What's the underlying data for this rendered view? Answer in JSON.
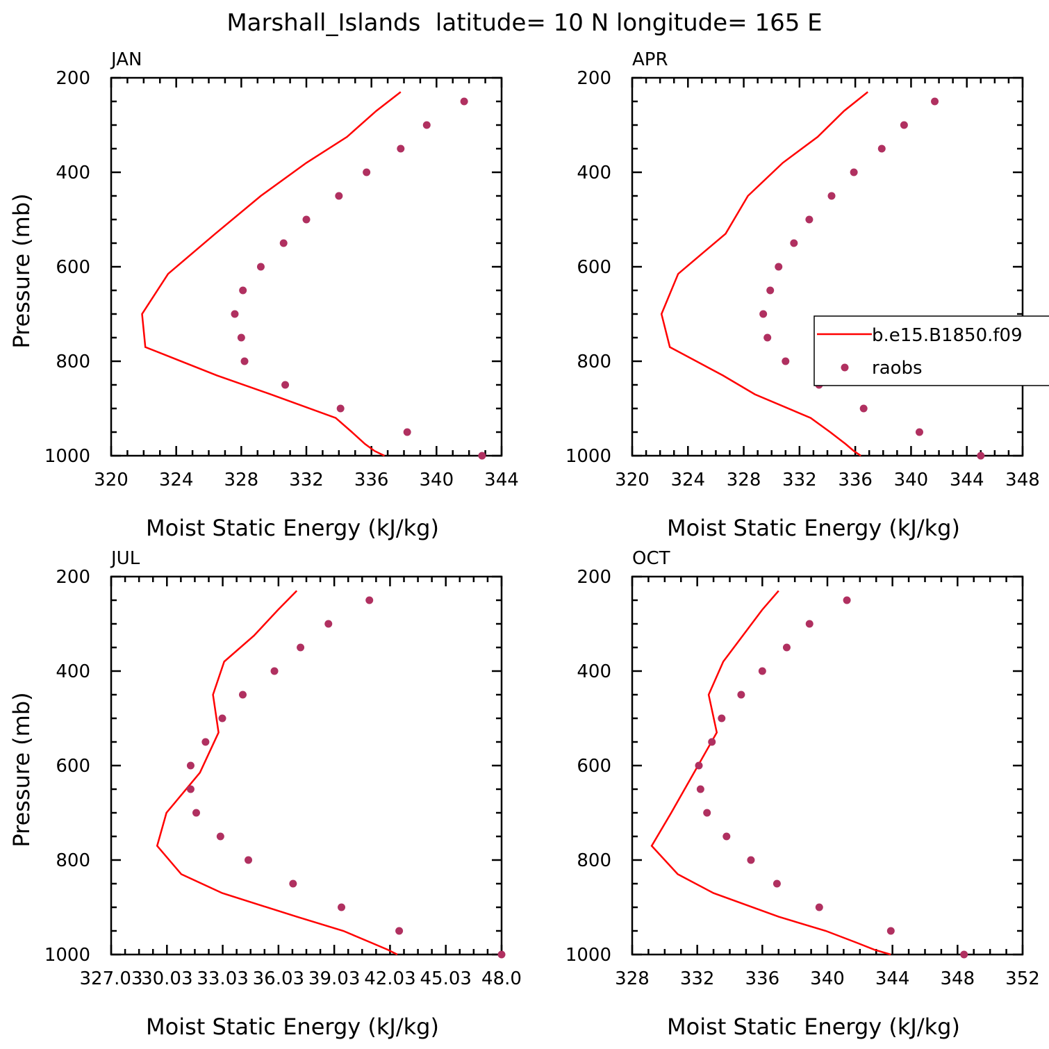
{
  "figure": {
    "title": "Marshall_Islands  latitude= 10 N longitude= 165 E"
  },
  "legend": {
    "model_label": "b.e15.B1850.f09",
    "obs_label": "raobs",
    "placement": "inside APR panel, right side",
    "model_color": "#ff0000",
    "obs_color": "#b03060"
  },
  "chart_data": [
    {
      "type": "line",
      "title": "JAN",
      "xlabel": "Moist Static Energy (kJ/kg)",
      "ylabel": "Pressure (mb)",
      "xlim": [
        320,
        344
      ],
      "ylim": [
        1000,
        200
      ],
      "x_ticks": [
        "320",
        "324",
        "328",
        "332",
        "336",
        "340",
        "344"
      ],
      "y_ticks": [
        "200",
        "400",
        "600",
        "800",
        "1000"
      ],
      "series": [
        {
          "name": "b.e15.B1850.f09",
          "style": "line",
          "pressure": [
            230,
            270,
            325,
            380,
            450,
            530,
            615,
            700,
            770,
            830,
            870,
            920,
            950,
            975,
            990,
            1000
          ],
          "values": [
            337.8,
            336.3,
            334.5,
            332.0,
            329.2,
            326.4,
            323.5,
            321.9,
            322.1,
            326.5,
            329.8,
            333.8,
            334.8,
            335.6,
            336.2,
            336.8
          ]
        },
        {
          "name": "raobs",
          "style": "dots",
          "pressure": [
            250,
            300,
            350,
            400,
            450,
            500,
            550,
            600,
            650,
            700,
            750,
            800,
            850,
            900,
            950,
            1000
          ],
          "values": [
            341.7,
            339.4,
            337.8,
            335.7,
            334.0,
            332.0,
            330.6,
            329.2,
            328.1,
            327.6,
            328.0,
            328.2,
            330.7,
            334.1,
            338.2,
            342.8
          ]
        }
      ]
    },
    {
      "type": "line",
      "title": "APR",
      "xlabel": "Moist Static Energy (kJ/kg)",
      "ylabel": "",
      "xlim": [
        320,
        348
      ],
      "ylim": [
        1000,
        200
      ],
      "x_ticks": [
        "320",
        "324",
        "328",
        "332",
        "336",
        "340",
        "344",
        "348"
      ],
      "y_ticks": [
        "200",
        "400",
        "600",
        "800",
        "1000"
      ],
      "series": [
        {
          "name": "b.e15.B1850.f09",
          "style": "line",
          "pressure": [
            230,
            270,
            325,
            380,
            450,
            530,
            615,
            700,
            770,
            830,
            870,
            920,
            950,
            975,
            990,
            1000
          ],
          "values": [
            336.9,
            335.2,
            333.3,
            330.8,
            328.3,
            326.7,
            323.3,
            322.1,
            322.7,
            326.5,
            328.8,
            332.8,
            334.2,
            335.3,
            335.9,
            336.4
          ]
        },
        {
          "name": "raobs",
          "style": "dots",
          "pressure": [
            250,
            300,
            350,
            400,
            450,
            500,
            550,
            600,
            650,
            700,
            750,
            800,
            850,
            900,
            950,
            1000
          ],
          "values": [
            341.7,
            339.5,
            337.9,
            335.9,
            334.3,
            332.7,
            331.6,
            330.5,
            329.9,
            329.4,
            329.7,
            331.0,
            333.4,
            336.6,
            340.6,
            345.0
          ]
        }
      ]
    },
    {
      "type": "line",
      "title": "JUL",
      "xlabel": "Moist Static Energy (kJ/kg)",
      "ylabel": "Pressure (mb)",
      "xlim": [
        327.03,
        348.0
      ],
      "ylim": [
        1000,
        200
      ],
      "x_ticks": [
        "327.03",
        "30.03",
        "33.03",
        "36.03",
        "39.03",
        "42.03",
        "45.03",
        "48.0"
      ],
      "y_ticks": [
        "200",
        "400",
        "600",
        "800",
        "1000"
      ],
      "series": [
        {
          "name": "b.e15.B1850.f09",
          "style": "line",
          "pressure": [
            230,
            270,
            325,
            380,
            450,
            530,
            615,
            700,
            770,
            830,
            870,
            920,
            950,
            975,
            990,
            1000
          ],
          "values": [
            337.0,
            336.0,
            334.7,
            333.1,
            332.5,
            332.8,
            331.8,
            330.0,
            329.5,
            330.8,
            333.0,
            337.0,
            339.5,
            341.0,
            341.9,
            342.4
          ]
        },
        {
          "name": "raobs",
          "style": "dots",
          "pressure": [
            250,
            300,
            350,
            400,
            450,
            500,
            550,
            600,
            650,
            700,
            750,
            800,
            850,
            900,
            950,
            1000
          ],
          "values": [
            340.9,
            338.7,
            337.2,
            335.8,
            334.1,
            333.0,
            332.1,
            331.3,
            331.3,
            331.6,
            332.9,
            334.4,
            336.8,
            339.4,
            342.5,
            348.0
          ]
        }
      ]
    },
    {
      "type": "line",
      "title": "OCT",
      "xlabel": "Moist Static Energy (kJ/kg)",
      "ylabel": "",
      "xlim": [
        328,
        352
      ],
      "ylim": [
        1000,
        200
      ],
      "x_ticks": [
        "328",
        "332",
        "336",
        "340",
        "344",
        "348",
        "352"
      ],
      "y_ticks": [
        "200",
        "400",
        "600",
        "800",
        "1000"
      ],
      "series": [
        {
          "name": "b.e15.B1850.f09",
          "style": "line",
          "pressure": [
            230,
            270,
            325,
            380,
            450,
            530,
            615,
            700,
            770,
            830,
            870,
            920,
            950,
            975,
            990,
            1000
          ],
          "values": [
            337.0,
            336.0,
            334.8,
            333.6,
            332.7,
            333.2,
            331.8,
            330.4,
            329.2,
            330.8,
            333.0,
            337.0,
            339.9,
            341.8,
            342.9,
            343.9
          ]
        },
        {
          "name": "raobs",
          "style": "dots",
          "pressure": [
            250,
            300,
            350,
            400,
            450,
            500,
            550,
            600,
            650,
            700,
            750,
            800,
            850,
            900,
            950,
            1000
          ],
          "values": [
            341.2,
            338.9,
            337.5,
            336.0,
            334.7,
            333.5,
            332.9,
            332.1,
            332.2,
            332.6,
            333.8,
            335.3,
            336.9,
            339.5,
            343.9,
            348.4
          ]
        }
      ]
    }
  ]
}
